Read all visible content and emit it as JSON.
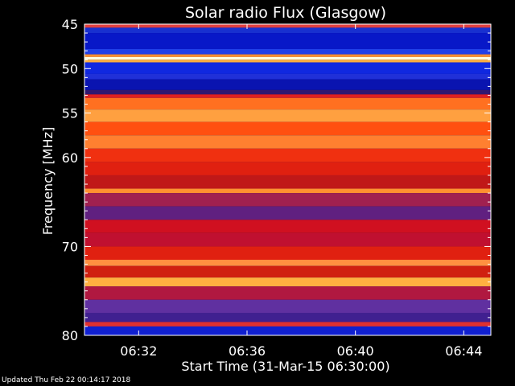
{
  "chart_data": {
    "type": "heatmap",
    "title": "Solar radio Flux (Glasgow)",
    "xlabel": "Start Time (31-Mar-15 06:30:00)",
    "ylabel": "Frequency [MHz]",
    "x_range_minutes": [
      0,
      15
    ],
    "x_ticks": [
      {
        "minute": 2,
        "label": "06:32"
      },
      {
        "minute": 6,
        "label": "06:36"
      },
      {
        "minute": 10,
        "label": "06:40"
      },
      {
        "minute": 14,
        "label": "06:44"
      }
    ],
    "y_range_mhz": [
      45,
      80
    ],
    "y_ticks": [
      {
        "mhz": 45,
        "label": "45"
      },
      {
        "mhz": 50,
        "label": "50"
      },
      {
        "mhz": 55,
        "label": "55"
      },
      {
        "mhz": 60,
        "label": "60"
      },
      {
        "mhz": 70,
        "label": "70"
      },
      {
        "mhz": 80,
        "label": "80"
      }
    ],
    "y_minor_ticks_mhz": [
      46,
      47,
      48,
      49,
      51,
      52,
      53,
      54,
      56,
      57,
      58,
      59,
      61,
      62,
      63,
      64,
      65,
      66,
      67,
      68,
      69,
      71,
      72,
      73,
      74,
      75,
      76,
      77,
      78,
      79
    ],
    "colors": {
      "navy": "#000060",
      "blue": "#1020e0",
      "purple": "#5030a0",
      "magenta": "#a02070",
      "red": "#e01010",
      "orange": "#ff6010",
      "yellow": "#ffd040",
      "white": "#ffffe0"
    },
    "frequency_bands": [
      {
        "from": 45.0,
        "to": 45.4,
        "color": "#e04040"
      },
      {
        "from": 45.4,
        "to": 46.0,
        "color": "#1830d0"
      },
      {
        "from": 46.0,
        "to": 47.8,
        "color": "#0818c8"
      },
      {
        "from": 47.8,
        "to": 48.4,
        "color": "#2040e8"
      },
      {
        "from": 48.4,
        "to": 48.7,
        "color": "#ff9030"
      },
      {
        "from": 48.7,
        "to": 49.0,
        "color": "#ffffe0"
      },
      {
        "from": 49.0,
        "to": 49.3,
        "color": "#ffb040"
      },
      {
        "from": 49.3,
        "to": 50.6,
        "color": "#1028e0"
      },
      {
        "from": 50.6,
        "to": 51.2,
        "color": "#2030d8"
      },
      {
        "from": 51.2,
        "to": 52.4,
        "color": "#0a14b0"
      },
      {
        "from": 52.4,
        "to": 52.9,
        "color": "#301870"
      },
      {
        "from": 52.9,
        "to": 53.3,
        "color": "#e02020"
      },
      {
        "from": 53.3,
        "to": 54.6,
        "color": "#ff7020"
      },
      {
        "from": 54.6,
        "to": 56.0,
        "color": "#ffa040"
      },
      {
        "from": 56.0,
        "to": 57.5,
        "color": "#ff5010"
      },
      {
        "from": 57.5,
        "to": 59.0,
        "color": "#ff8030"
      },
      {
        "from": 59.0,
        "to": 60.5,
        "color": "#f03010"
      },
      {
        "from": 60.5,
        "to": 62.0,
        "color": "#e02010"
      },
      {
        "from": 62.0,
        "to": 63.5,
        "color": "#c01818"
      },
      {
        "from": 63.5,
        "to": 64.0,
        "color": "#ff9030"
      },
      {
        "from": 64.0,
        "to": 65.5,
        "color": "#a02050"
      },
      {
        "from": 65.5,
        "to": 67.0,
        "color": "#602080"
      },
      {
        "from": 67.0,
        "to": 68.5,
        "color": "#d01020"
      },
      {
        "from": 68.5,
        "to": 70.0,
        "color": "#c01030"
      },
      {
        "from": 70.0,
        "to": 71.5,
        "color": "#e02010"
      },
      {
        "from": 71.5,
        "to": 72.2,
        "color": "#ff9040"
      },
      {
        "from": 72.2,
        "to": 73.5,
        "color": "#d02010"
      },
      {
        "from": 73.5,
        "to": 74.5,
        "color": "#ffb040"
      },
      {
        "from": 74.5,
        "to": 76.0,
        "color": "#b01840"
      },
      {
        "from": 76.0,
        "to": 77.5,
        "color": "#6030a0"
      },
      {
        "from": 77.5,
        "to": 78.5,
        "color": "#402090"
      },
      {
        "from": 78.5,
        "to": 79.0,
        "color": "#e03030"
      },
      {
        "from": 79.0,
        "to": 80.0,
        "color": "#1020d0"
      },
      {
        "from": 80.0,
        "to": 80.5,
        "color": "#000040"
      }
    ]
  },
  "footer": {
    "updated": "Updated Thu Feb 22 00:14:17 2018"
  }
}
